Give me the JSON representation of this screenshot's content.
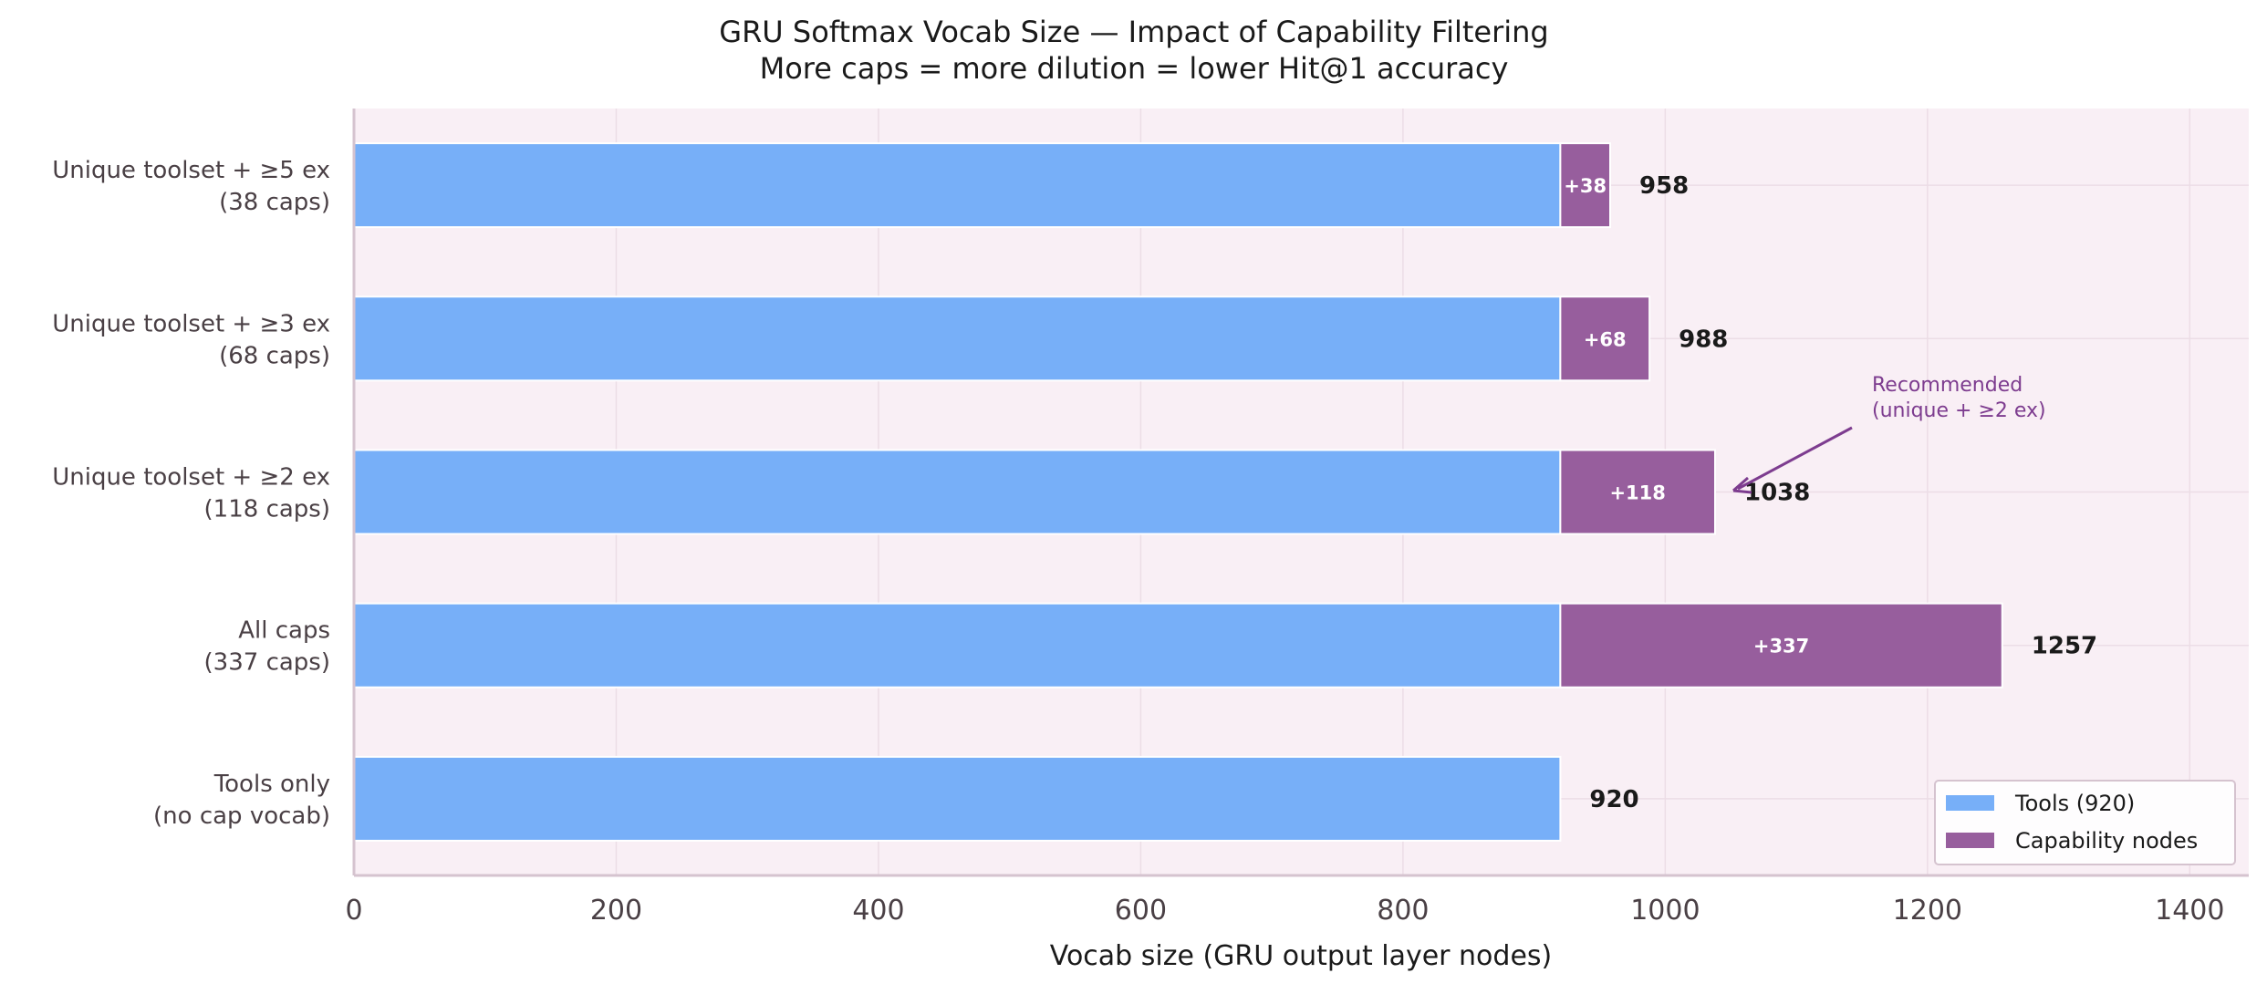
{
  "chart_data": {
    "type": "bar",
    "orientation": "horizontal",
    "stacked": true,
    "title": "GRU Softmax Vocab Size — Impact of Capability Filtering",
    "subtitle": "More caps = more dilution = lower Hit@1 accuracy",
    "xlabel": "Vocab size (GRU output layer nodes)",
    "ylabel": "",
    "xlim": [
      0,
      1445
    ],
    "xticks": [
      0,
      200,
      400,
      600,
      800,
      1000,
      1200,
      1400
    ],
    "grid": true,
    "legend_position": "bottom-right",
    "categories": [
      {
        "line1": "Unique toolset + ≥5 ex",
        "line2": "(38 caps)"
      },
      {
        "line1": "Unique toolset + ≥3 ex",
        "line2": "(68 caps)"
      },
      {
        "line1": "Unique toolset + ≥2 ex",
        "line2": "(118 caps)"
      },
      {
        "line1": "All caps",
        "line2": "(337 caps)"
      },
      {
        "line1": "Tools only",
        "line2": "(no cap vocab)"
      }
    ],
    "series": [
      {
        "name": "Tools (920)",
        "color": "#77aff8",
        "values": [
          920,
          920,
          920,
          920,
          920
        ]
      },
      {
        "name": "Capability nodes",
        "color": "#975e9d",
        "values": [
          38,
          68,
          118,
          337,
          0
        ]
      }
    ],
    "inner_labels": [
      "+38",
      "+68",
      "+118",
      "+337",
      ""
    ],
    "total_labels": [
      "958",
      "988",
      "1038",
      "1257",
      "920"
    ],
    "annotation": {
      "line1": "Recommended",
      "line2": "(unique + ≥2 ex)",
      "target_category": 2,
      "color": "#7d3c8f"
    },
    "plot_background": "#f9eff5"
  }
}
